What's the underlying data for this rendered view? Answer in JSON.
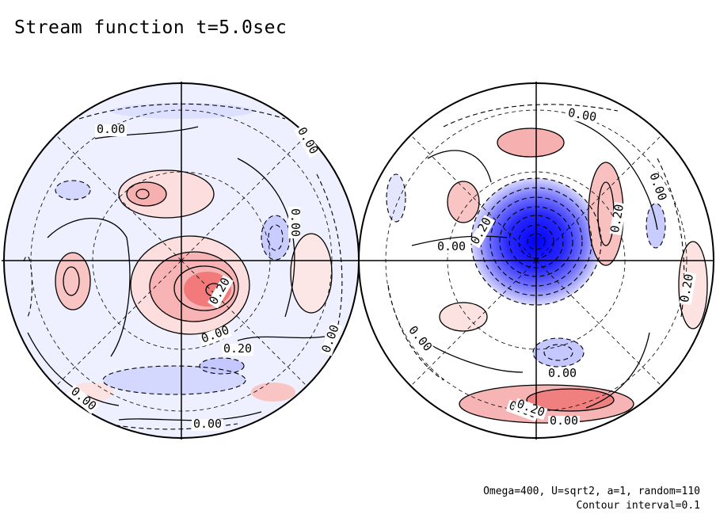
{
  "title": "Stream function t=5.0sec",
  "notes": {
    "params": "Omega=400, U=sqrt2, a=1, random=110",
    "interval": "Contour interval=0.1"
  },
  "colors": {
    "positive": "#f07070",
    "negative": "#3030ff",
    "background": "#ffffff",
    "line": "#000000"
  },
  "chart_data": [
    {
      "type": "contour",
      "title": "Stream function t=5.0sec",
      "projection": "orthographic polar",
      "contour_interval": 0.1,
      "contour_labels": [
        "0.00",
        "0.00",
        "0.00",
        "0.20",
        "0.00",
        "0.20",
        "0.00",
        "0.00",
        "0.00"
      ],
      "features": [
        {
          "sign": "positive",
          "peak": 0.4,
          "center_lon_deg": 120,
          "center_r": 0.25
        },
        {
          "sign": "positive",
          "peak": 0.3,
          "center_lon_deg": 260,
          "center_r": 0.38
        },
        {
          "sign": "positive",
          "peak": 0.2,
          "center_lon_deg": 180,
          "center_r": 0.7
        },
        {
          "sign": "negative",
          "peak": -0.2,
          "center_lon_deg": 30,
          "center_r": 0.55
        },
        {
          "sign": "negative",
          "peak": -0.2,
          "center_lon_deg": 310,
          "center_r": 0.6
        }
      ]
    },
    {
      "type": "contour",
      "title": "Stream function t=5.0sec",
      "projection": "orthographic polar",
      "contour_interval": 0.1,
      "contour_labels": [
        "0.00",
        "0.00",
        "0.00",
        "0.20",
        "0.20",
        "0.00",
        "0.00",
        "0.20",
        "0.00",
        "0.00",
        "0.20"
      ],
      "features": [
        {
          "sign": "negative",
          "peak": -1.4,
          "center_lon_deg": 0,
          "center_r": 0.0
        },
        {
          "sign": "positive",
          "peak": 0.3,
          "center_lon_deg": 265,
          "center_r": 0.9
        },
        {
          "sign": "positive",
          "peak": 0.2,
          "center_lon_deg": 10,
          "center_r": 0.5
        },
        {
          "sign": "positive",
          "peak": 0.2,
          "center_lon_deg": 105,
          "center_r": 0.8
        },
        {
          "sign": "negative",
          "peak": -0.2,
          "center_lon_deg": 265,
          "center_r": 0.6
        }
      ]
    }
  ]
}
